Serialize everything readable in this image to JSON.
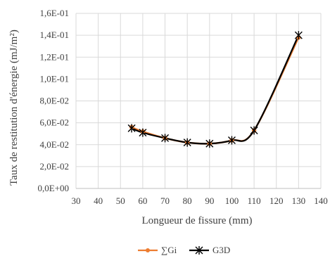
{
  "chart_data": {
    "type": "line",
    "xlabel": "Longueur de fissure (mm)",
    "ylabel": "Taux de restitution d'énergie (mJ/m²)",
    "xlim": [
      30,
      140
    ],
    "ylim": [
      0,
      0.16
    ],
    "x_ticks": [
      "30",
      "40",
      "50",
      "60",
      "70",
      "80",
      "90",
      "100",
      "110",
      "120",
      "130",
      "140"
    ],
    "y_ticks": [
      "0,0E+00",
      "2,0E-02",
      "4,0E-02",
      "6,0E-02",
      "8,0E-02",
      "1,0E-01",
      "1,2E-01",
      "1,4E-01",
      "1,6E-01"
    ],
    "grid": true,
    "legend_position": "bottom",
    "x": [
      55,
      60,
      70,
      80,
      90,
      100,
      110,
      130
    ],
    "series": [
      {
        "name": "∑Gi",
        "color": "#ED7D31",
        "marker": "circle",
        "values": [
          0.056,
          0.052,
          0.046,
          0.042,
          0.041,
          0.044,
          0.053,
          0.138
        ]
      },
      {
        "name": "G3D",
        "color": "#000000",
        "marker": "star",
        "values": [
          0.055,
          0.051,
          0.046,
          0.042,
          0.041,
          0.044,
          0.053,
          0.14
        ]
      }
    ]
  }
}
